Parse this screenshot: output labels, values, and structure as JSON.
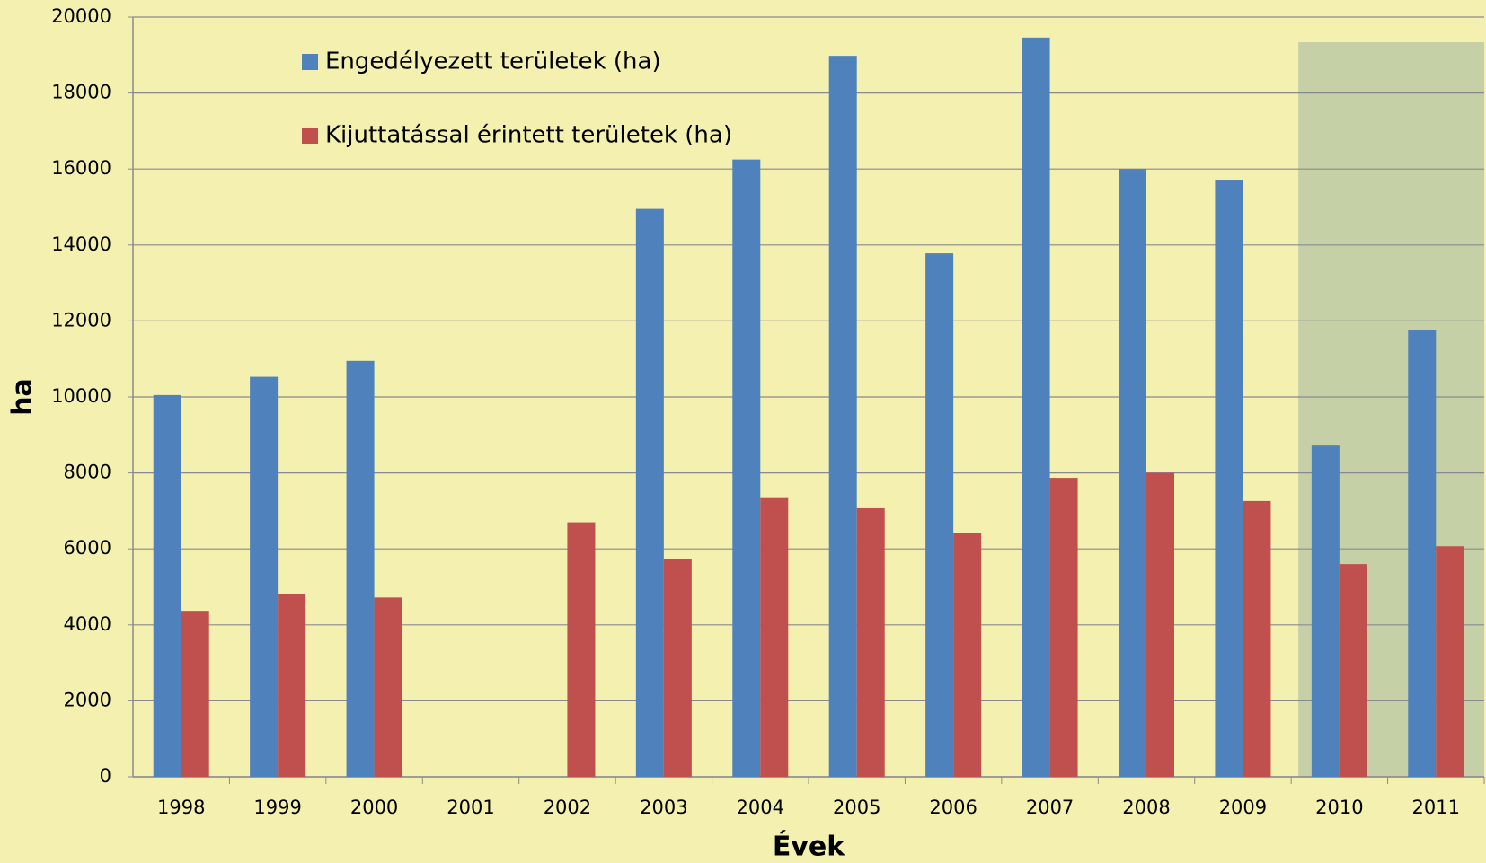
{
  "chart_data": {
    "type": "bar",
    "x_label": "Évek",
    "y_label": "ha",
    "categories": [
      "1998",
      "1999",
      "2000",
      "2001",
      "2002",
      "2003",
      "2004",
      "2005",
      "2006",
      "2007",
      "2008",
      "2009",
      "2010",
      "2011"
    ],
    "series": [
      {
        "name": "Engedélyezett területek (ha)",
        "color": "#4f81bd",
        "values": [
          10050,
          10530,
          10950,
          null,
          null,
          14950,
          16250,
          18980,
          13780,
          19460,
          16000,
          15720,
          8720,
          11770
        ]
      },
      {
        "name": "Kijuttatással érintett területek (ha)",
        "color": "#c0504d",
        "values": [
          4370,
          4820,
          4720,
          null,
          6700,
          5740,
          7360,
          7070,
          6420,
          7870,
          8000,
          7260,
          5600,
          6070
        ]
      }
    ],
    "ylim": [
      0,
      20000
    ],
    "yticks": [
      0,
      2000,
      4000,
      6000,
      8000,
      10000,
      12000,
      14000,
      16000,
      18000,
      20000
    ],
    "grid": true,
    "legend": "top-left"
  }
}
